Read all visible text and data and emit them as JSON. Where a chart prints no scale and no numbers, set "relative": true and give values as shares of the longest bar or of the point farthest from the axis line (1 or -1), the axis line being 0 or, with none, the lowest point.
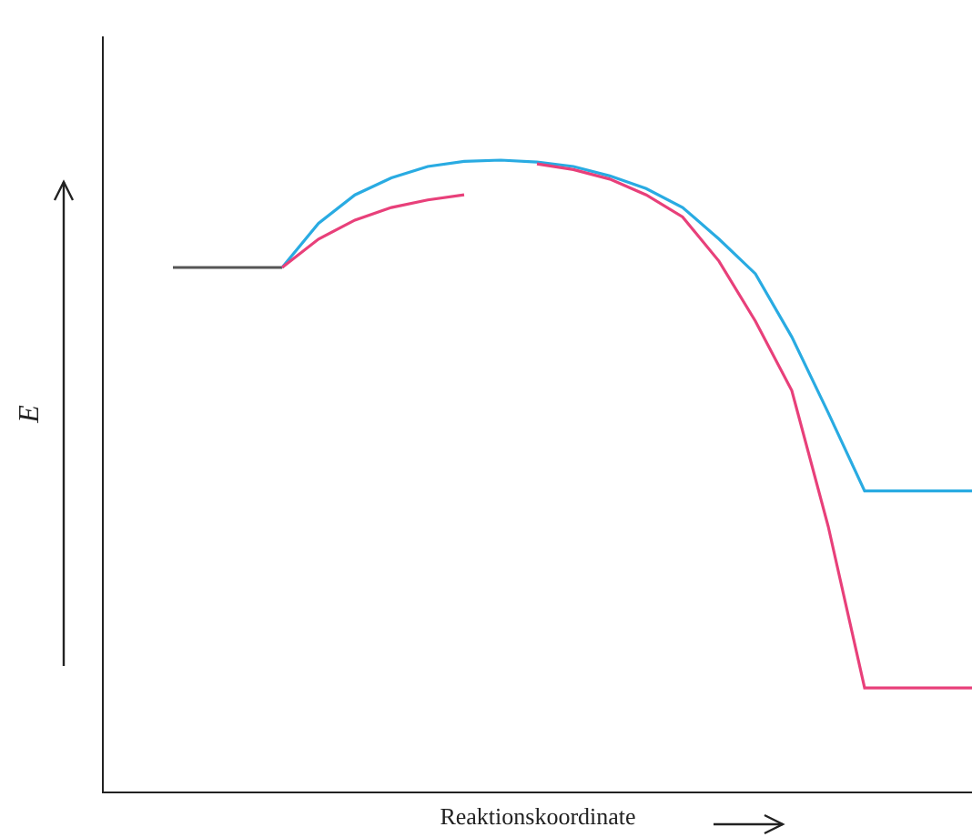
{
  "chart_data": {
    "type": "line",
    "relative": true,
    "xlabel": "Reaktionskoordinate",
    "ylabel": "E",
    "line_style": "solid",
    "categories": [
      null,
      null,
      null,
      null,
      null,
      null,
      null,
      null,
      null,
      null,
      null,
      null,
      null,
      null,
      null,
      null,
      null,
      null,
      null,
      null,
      null,
      null,
      null
    ],
    "series": [
      {
        "color": "#555555",
        "values": [
          0.83,
          0.83,
          0.83,
          0.83,
          null,
          null,
          null,
          null,
          null,
          null,
          null,
          null,
          null,
          null,
          null,
          null,
          null,
          null,
          null,
          null,
          null,
          null,
          null
        ]
      },
      {
        "color": "#29abe2",
        "values": [
          null,
          null,
          null,
          0.83,
          0.9,
          0.945,
          0.972,
          0.99,
          0.998,
          1,
          0.997,
          0.99,
          0.975,
          0.955,
          0.925,
          0.875,
          0.82,
          0.72,
          0.6,
          0.476,
          0.476,
          0.476,
          0.476
        ]
      },
      {
        "color": "#e8407a",
        "values": [
          null,
          null,
          null,
          0.83,
          0.875,
          0.905,
          0.925,
          0.937,
          0.945,
          null,
          null,
          null,
          null,
          null,
          null,
          null,
          null,
          null,
          null,
          null,
          null,
          null,
          null
        ]
      },
      {
        "color": "#e8407a",
        "values": [
          null,
          null,
          null,
          null,
          null,
          null,
          null,
          null,
          null,
          null,
          0.994,
          0.985,
          0.97,
          0.945,
          0.91,
          0.84,
          0.745,
          0.635,
          0.42,
          0.164,
          0.164,
          0.164,
          0.164
        ]
      }
    ]
  }
}
